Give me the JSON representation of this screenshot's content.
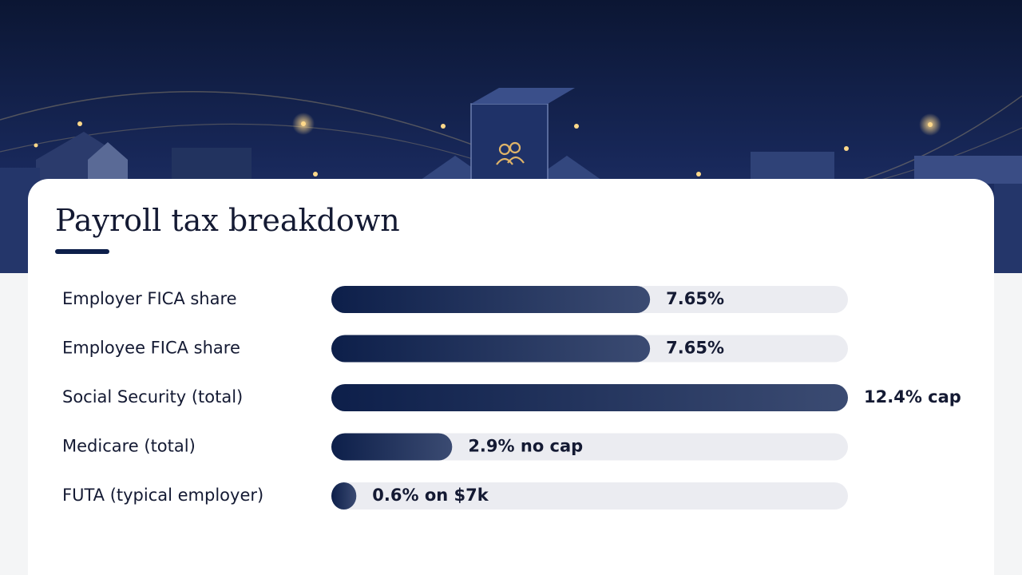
{
  "chart_data": {
    "type": "bar",
    "horizontal": true,
    "title": "Payroll tax breakdown",
    "categories": [
      "Employer FICA share",
      "Employee FICA share",
      "Social Security (total)",
      "Medicare (total)",
      "FUTA (typical employer)"
    ],
    "values": [
      7.65,
      7.65,
      12.4,
      2.9,
      0.6
    ],
    "value_labels": [
      "7.65%",
      "7.65%",
      "12.4% cap",
      "2.9% no cap",
      "0.6% on $7k"
    ],
    "xlim": [
      0,
      12.4
    ],
    "color": "#0d1f4a"
  }
}
